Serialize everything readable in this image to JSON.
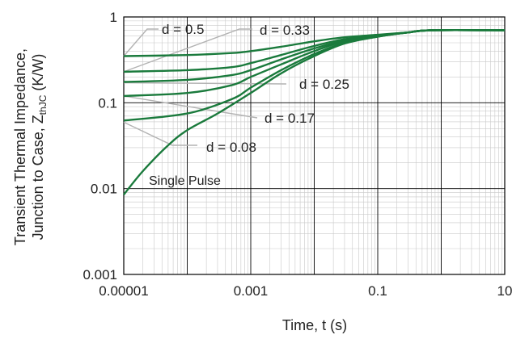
{
  "chart_data": {
    "type": "line",
    "xlabel": "Time, t (s)",
    "ylabel_line1": "Transient Thermal Impedance,",
    "ylabel_line2_pre": "Junction to Case, Z",
    "ylabel_sub": "thJC",
    "ylabel_line2_post": " (K/W)",
    "x_scale": "log",
    "y_scale": "log",
    "xlim": [
      1e-05,
      10
    ],
    "ylim": [
      0.001,
      1
    ],
    "x_tick_values": [
      1e-05,
      0.001,
      0.1,
      10
    ],
    "x_tick_labels": [
      "0.00001",
      "0.001",
      "0.1",
      "10"
    ],
    "y_tick_values": [
      0.001,
      0.01,
      0.1,
      1
    ],
    "y_tick_labels": [
      "0.001",
      "0.01",
      "0.1",
      "1"
    ],
    "grid": true,
    "line_color": "#1a7a3c",
    "leader_color": "#b3b3b3",
    "series": [
      {
        "name": "d = 0.5",
        "x": [
          1e-05,
          0.0001,
          0.0005,
          0.001,
          0.003,
          0.01,
          0.03,
          0.1,
          0.3,
          0.7,
          10
        ],
        "y": [
          0.35,
          0.36,
          0.38,
          0.4,
          0.45,
          0.52,
          0.58,
          0.62,
          0.66,
          0.7,
          0.7
        ]
      },
      {
        "name": "d = 0.33",
        "x": [
          1e-05,
          0.0001,
          0.0005,
          0.001,
          0.003,
          0.01,
          0.03,
          0.1,
          0.3,
          0.7,
          10
        ],
        "y": [
          0.23,
          0.24,
          0.26,
          0.29,
          0.36,
          0.46,
          0.55,
          0.61,
          0.66,
          0.7,
          0.7
        ]
      },
      {
        "name": "d = 0.25",
        "x": [
          1e-05,
          0.0001,
          0.0005,
          0.001,
          0.003,
          0.01,
          0.03,
          0.1,
          0.3,
          0.7,
          10
        ],
        "y": [
          0.175,
          0.185,
          0.21,
          0.24,
          0.32,
          0.43,
          0.53,
          0.6,
          0.66,
          0.7,
          0.7
        ]
      },
      {
        "name": "d = 0.17",
        "x": [
          1e-05,
          0.0001,
          0.0005,
          0.001,
          0.003,
          0.01,
          0.03,
          0.1,
          0.3,
          0.7,
          10
        ],
        "y": [
          0.12,
          0.13,
          0.16,
          0.2,
          0.28,
          0.4,
          0.52,
          0.6,
          0.66,
          0.7,
          0.7
        ]
      },
      {
        "name": "d = 0.08",
        "x": [
          1e-05,
          0.0001,
          0.0005,
          0.001,
          0.003,
          0.01,
          0.03,
          0.1,
          0.3,
          0.7,
          10
        ],
        "y": [
          0.062,
          0.075,
          0.11,
          0.15,
          0.24,
          0.37,
          0.5,
          0.59,
          0.66,
          0.7,
          0.7
        ]
      },
      {
        "name": "Single Pulse",
        "x": [
          1e-05,
          2e-05,
          5e-05,
          0.0001,
          0.0003,
          0.001,
          0.003,
          0.01,
          0.03,
          0.1,
          0.3,
          0.7,
          10
        ],
        "y": [
          0.0085,
          0.016,
          0.032,
          0.048,
          0.075,
          0.13,
          0.22,
          0.35,
          0.49,
          0.59,
          0.66,
          0.7,
          0.7
        ]
      }
    ],
    "annotations": [
      {
        "text": "d = 0.5"
      },
      {
        "text": "d = 0.33"
      },
      {
        "text": "d = 0.25"
      },
      {
        "text": "d = 0.17"
      },
      {
        "text": "d = 0.08"
      },
      {
        "text": "Single Pulse"
      }
    ]
  }
}
